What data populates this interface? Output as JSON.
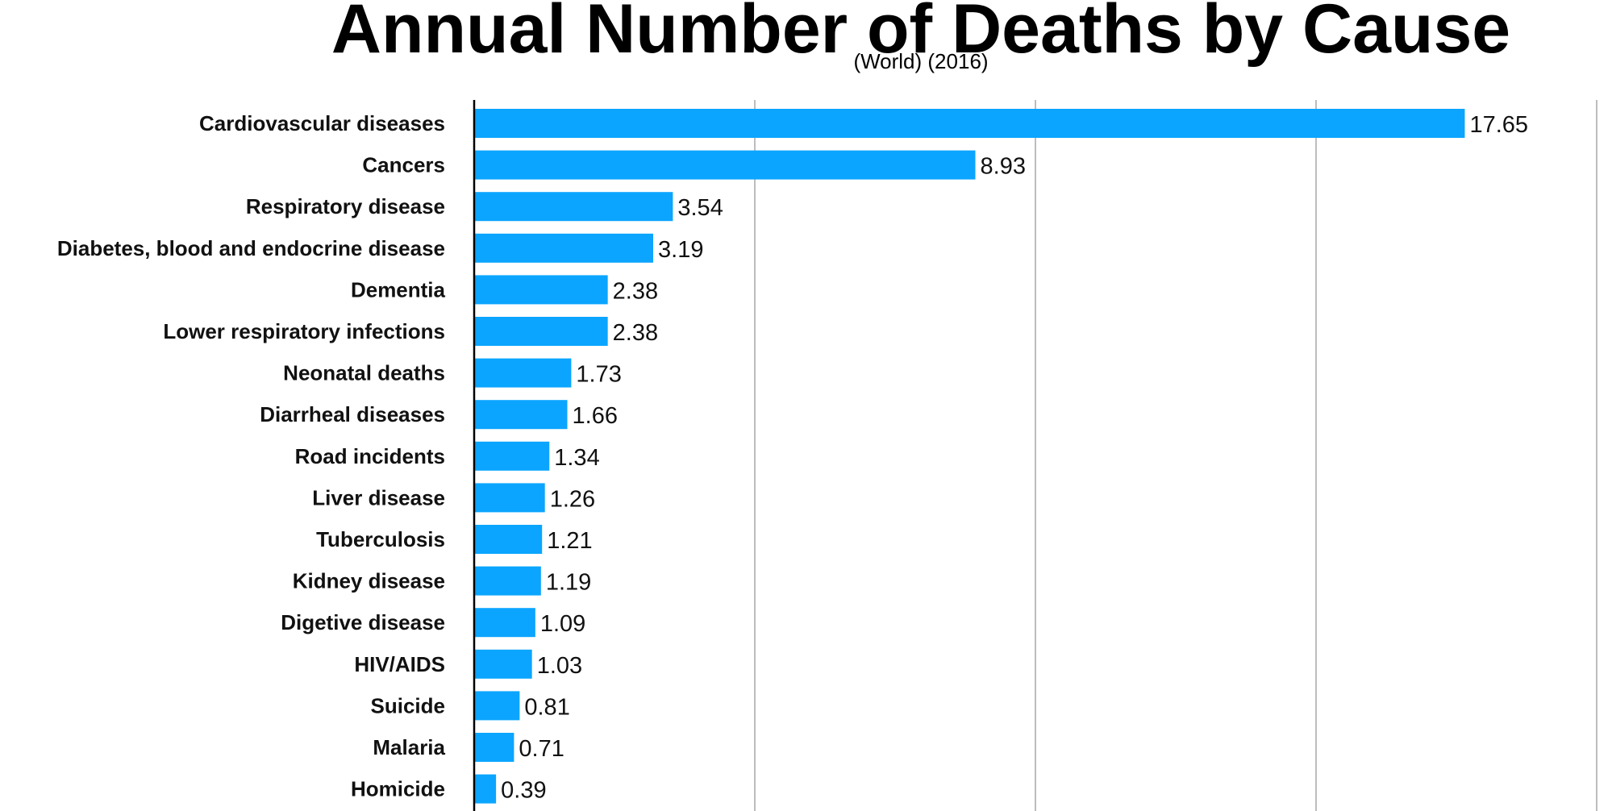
{
  "chart_data": {
    "type": "bar",
    "orientation": "horizontal",
    "title": "Annual Number of Deaths by Cause",
    "subtitle": "(World) (2016)",
    "categories": [
      "Cardiovascular diseases",
      "Cancers",
      "Respiratory disease",
      "Diabetes, blood and endocrine disease",
      "Dementia",
      "Lower respiratory infections",
      "Neonatal deaths",
      "Diarrheal diseases",
      "Road incidents",
      "Liver disease",
      "Tuberculosis",
      "Kidney disease",
      "Digetive disease",
      "HIV/AIDS",
      "Suicide",
      "Malaria",
      "Homicide"
    ],
    "values": [
      17.65,
      8.93,
      3.54,
      3.19,
      2.38,
      2.38,
      1.73,
      1.66,
      1.34,
      1.26,
      1.21,
      1.19,
      1.09,
      1.03,
      0.81,
      0.71,
      0.39
    ],
    "value_labels": [
      "17.65",
      "8.93",
      "3.54",
      "3.19",
      "2.38",
      "2.38",
      "1.73",
      "1.66",
      "1.34",
      "1.26",
      "1.21",
      "1.19",
      "1.09",
      "1.03",
      "0.81",
      "0.71",
      "0.39"
    ],
    "xlim": [
      0,
      20
    ],
    "xticks": [
      0,
      5,
      10,
      15,
      20
    ],
    "grid": true,
    "legend": "none",
    "bar_color": "#0ba5ff",
    "grid_color": "#bdbdbd",
    "axis_color": "#000000"
  }
}
